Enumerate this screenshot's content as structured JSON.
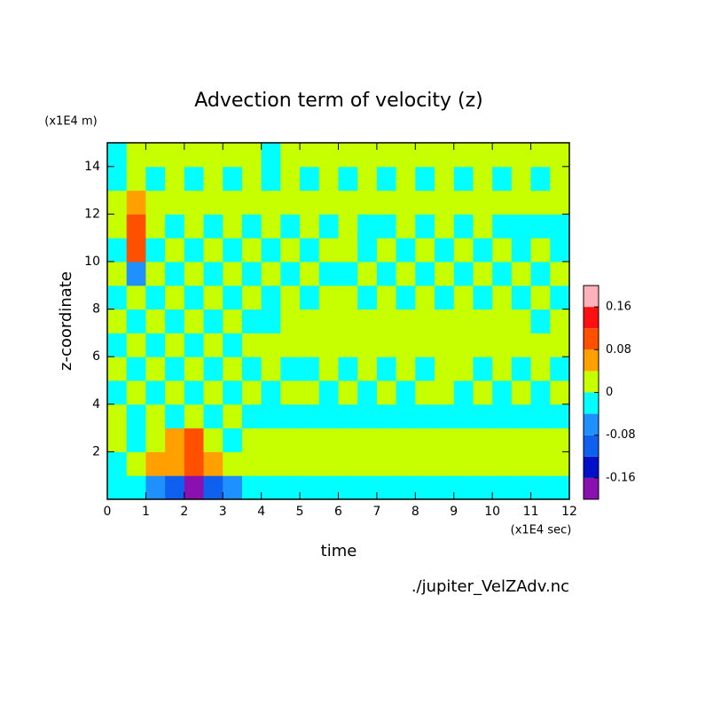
{
  "chart_data": {
    "type": "contour",
    "title": "Advection term of velocity (z)",
    "x_label": "time",
    "y_label": "z-coordinate",
    "x_unit": "(x1E4 sec)",
    "y_unit": "(x1E4 m)",
    "footnote": "./jupiter_VelZAdv.nc",
    "xlim": [
      0,
      12
    ],
    "ylim": [
      0,
      15
    ],
    "xticks": [
      0,
      1,
      2,
      3,
      4,
      5,
      6,
      7,
      8,
      9,
      10,
      11,
      12
    ],
    "yticks": [
      2,
      4,
      6,
      8,
      10,
      12,
      14
    ],
    "x_step": 0.5,
    "y_step": 1,
    "z": [
      [
        -0.02,
        -0.02,
        -0.06,
        -0.1,
        -0.18,
        -0.1,
        -0.06,
        -0.02,
        -0.02,
        -0.02,
        -0.02,
        -0.02,
        -0.02,
        -0.02,
        -0.02,
        -0.02,
        -0.02,
        -0.02,
        -0.02,
        -0.02,
        -0.02,
        -0.02,
        -0.02,
        -0.02
      ],
      [
        -0.02,
        0.02,
        0.06,
        0.06,
        0.1,
        0.06,
        0.02,
        0.02,
        0.02,
        0.02,
        0.02,
        0.02,
        0.02,
        0.02,
        0.02,
        0.02,
        0.02,
        0.02,
        0.02,
        0.02,
        0.02,
        0.02,
        0.02,
        0.02
      ],
      [
        0.02,
        -0.02,
        0.02,
        0.06,
        0.1,
        0.02,
        -0.02,
        0.02,
        0.02,
        0.02,
        0.02,
        0.02,
        0.02,
        0.02,
        0.02,
        0.02,
        0.02,
        0.02,
        0.02,
        0.02,
        0.02,
        0.02,
        0.02,
        0.02
      ],
      [
        0.02,
        -0.02,
        0.02,
        -0.02,
        0.02,
        -0.02,
        0.02,
        -0.02,
        -0.02,
        -0.02,
        -0.02,
        -0.02,
        -0.02,
        -0.02,
        -0.02,
        -0.02,
        -0.02,
        -0.02,
        -0.02,
        -0.02,
        -0.02,
        -0.02,
        -0.02,
        -0.02
      ],
      [
        -0.02,
        0.02,
        -0.02,
        0.02,
        -0.02,
        0.02,
        -0.02,
        0.02,
        -0.02,
        0.02,
        0.02,
        -0.02,
        0.02,
        -0.02,
        0.02,
        -0.02,
        0.02,
        0.02,
        -0.02,
        0.02,
        -0.02,
        0.02,
        -0.02,
        0.02
      ],
      [
        0.02,
        -0.02,
        0.02,
        -0.02,
        0.02,
        -0.02,
        0.02,
        -0.02,
        0.02,
        -0.02,
        -0.02,
        0.02,
        -0.02,
        0.02,
        -0.02,
        0.02,
        -0.02,
        0.02,
        0.02,
        -0.02,
        0.02,
        -0.02,
        0.02,
        -0.02
      ],
      [
        -0.02,
        0.02,
        -0.02,
        0.02,
        -0.02,
        0.02,
        -0.02,
        0.02,
        0.02,
        0.02,
        0.02,
        0.02,
        0.02,
        0.02,
        0.02,
        0.02,
        0.02,
        0.02,
        0.02,
        0.02,
        0.02,
        0.02,
        0.02,
        0.02
      ],
      [
        0.02,
        -0.02,
        0.02,
        -0.02,
        0.02,
        -0.02,
        0.02,
        -0.02,
        -0.02,
        0.02,
        0.02,
        0.02,
        0.02,
        0.02,
        0.02,
        0.02,
        0.02,
        0.02,
        0.02,
        0.02,
        0.02,
        0.02,
        -0.02,
        0.02
      ],
      [
        -0.02,
        0.02,
        -0.02,
        0.02,
        -0.02,
        0.02,
        -0.02,
        0.02,
        -0.02,
        0.02,
        -0.02,
        0.02,
        0.02,
        -0.02,
        0.02,
        -0.02,
        0.02,
        -0.02,
        0.02,
        -0.02,
        0.02,
        -0.02,
        0.02,
        -0.02
      ],
      [
        0.02,
        -0.06,
        0.02,
        -0.02,
        0.02,
        -0.02,
        0.02,
        -0.02,
        0.02,
        -0.02,
        0.02,
        -0.02,
        -0.02,
        0.02,
        -0.02,
        0.02,
        -0.02,
        0.02,
        -0.02,
        0.02,
        -0.02,
        0.02,
        -0.02,
        0.02
      ],
      [
        -0.02,
        0.1,
        -0.02,
        0.02,
        -0.02,
        0.02,
        -0.02,
        0.02,
        -0.02,
        0.02,
        -0.02,
        0.02,
        0.02,
        -0.02,
        0.02,
        -0.02,
        0.02,
        -0.02,
        0.02,
        -0.02,
        0.02,
        -0.02,
        0.02,
        -0.02
      ],
      [
        0.02,
        0.1,
        0.02,
        -0.02,
        0.02,
        -0.02,
        0.02,
        -0.02,
        0.02,
        -0.02,
        0.02,
        -0.02,
        0.02,
        -0.02,
        -0.02,
        0.02,
        -0.02,
        0.02,
        -0.02,
        0.02,
        -0.02,
        -0.02,
        -0.02,
        -0.02
      ],
      [
        0.02,
        0.06,
        0.02,
        0.02,
        0.02,
        0.02,
        0.02,
        0.02,
        0.02,
        0.02,
        0.02,
        0.02,
        0.02,
        0.02,
        0.02,
        0.02,
        0.02,
        0.02,
        0.02,
        0.02,
        0.02,
        0.02,
        0.02,
        0.02
      ],
      [
        -0.02,
        0.02,
        -0.02,
        0.02,
        -0.02,
        0.02,
        -0.02,
        0.02,
        -0.02,
        0.02,
        -0.02,
        0.02,
        -0.02,
        0.02,
        -0.02,
        0.02,
        -0.02,
        0.02,
        -0.02,
        0.02,
        -0.02,
        0.02,
        -0.02,
        0.02
      ],
      [
        -0.02,
        0.02,
        0.02,
        0.02,
        0.02,
        0.02,
        0.02,
        0.02,
        -0.02,
        0.02,
        0.02,
        0.02,
        0.02,
        0.02,
        0.02,
        0.02,
        0.02,
        0.02,
        0.02,
        0.02,
        0.02,
        0.02,
        0.02,
        0.02
      ]
    ],
    "colorbar": {
      "levels": [
        -0.2,
        -0.16,
        -0.12,
        -0.08,
        -0.04,
        0,
        0.04,
        0.08,
        0.12,
        0.16,
        0.2
      ],
      "colors": [
        "#8a10b0",
        "#0010c8",
        "#1060f0",
        "#1e90ff",
        "#00ffff",
        "#c8ff00",
        "#ffa000",
        "#ff5000",
        "#ff1010",
        "#ffb0b8"
      ],
      "ticks": [
        0.16,
        0.08,
        0,
        -0.08,
        -0.16
      ]
    }
  }
}
